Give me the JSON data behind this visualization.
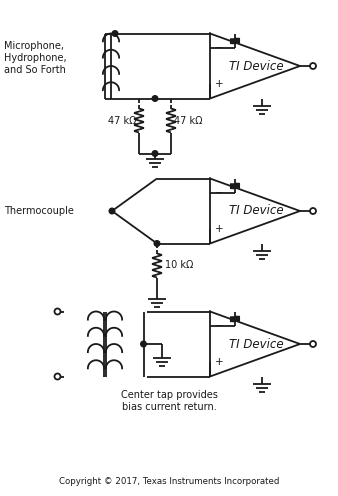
{
  "background_color": "#ffffff",
  "line_color": "#1a1a1a",
  "line_width": 1.3,
  "copyright_text": "Copyright © 2017, Texas Instruments Incorporated",
  "center_tap_text": "Center tap provides\nbias current return.",
  "labels": {
    "microphone": "Microphone,\nHydrophone,\nand So Forth",
    "thermocouple": "Thermocouple",
    "r47k_left": "47 kΩ",
    "r47k_right": "47 kΩ",
    "r10k": "10 kΩ",
    "ti_device": "TI Device"
  },
  "font_size_label": 7.0,
  "font_size_copyright": 6.2,
  "font_size_pm": 7.5
}
